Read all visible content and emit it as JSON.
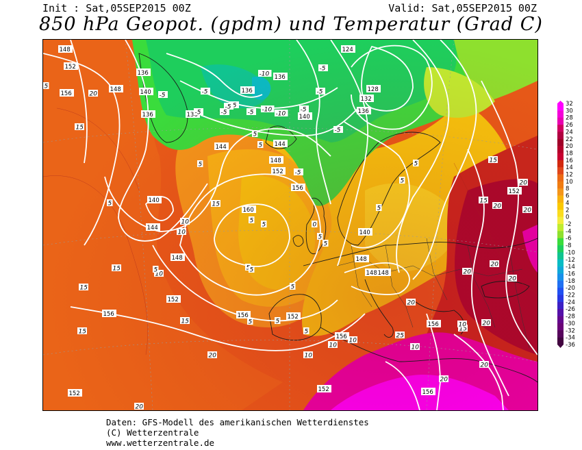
{
  "header": {
    "init": "Init : Sat,05SEP2015 00Z",
    "valid": "Valid: Sat,05SEP2015 00Z",
    "title": "850 hPa Geopot. (gpdm) und Temperatur (Grad C)"
  },
  "footer": {
    "line1": "Daten: GFS-Modell des amerikanischen Wetterdienstes",
    "line2": "(C) Wetterzentrale",
    "line3": "www.wetterzentrale.de"
  },
  "legend": {
    "ticks": [
      "32",
      "30",
      "28",
      "26",
      "24",
      "22",
      "20",
      "18",
      "16",
      "14",
      "12",
      "10",
      "8",
      "6",
      "4",
      "2",
      "0",
      "-2",
      "-4",
      "-6",
      "-8",
      "-10",
      "-12",
      "-14",
      "-16",
      "-18",
      "-20",
      "-22",
      "-24",
      "-26",
      "-28",
      "-30",
      "-32",
      "-34",
      "-36"
    ],
    "colors": [
      "#ff00ff",
      "#f400d8",
      "#e800b0",
      "#d00060",
      "#b00040",
      "#a00028",
      "#b4002a",
      "#c80030",
      "#d2280e",
      "#e0461a",
      "#ec6a16",
      "#f07c12",
      "#f4961a",
      "#f8b20e",
      "#fac800",
      "#fadc1e",
      "#f4ec3c",
      "#c0ec30",
      "#8ee02e",
      "#3adc3c",
      "#1ece5c",
      "#10c490",
      "#08bcc4",
      "#10a8d8",
      "#1890ea",
      "#2070f2",
      "#2050f2",
      "#2838e2",
      "#3c20c4",
      "#5410a8",
      "#64088c",
      "#6a0478",
      "#56045c",
      "#420440"
    ]
  },
  "map": {
    "geopotential_labels": [
      "148",
      "152",
      "156",
      "148",
      "140",
      "136",
      "136",
      "136",
      "136",
      "136",
      "124",
      "128",
      "132",
      "136",
      "140",
      "144",
      "144",
      "148",
      "152",
      "156",
      "160",
      "140",
      "144",
      "148",
      "152",
      "156",
      "140",
      "148",
      "148",
      "148",
      "152",
      "152",
      "156",
      "156",
      "156",
      "152",
      "152",
      "156"
    ],
    "temperature_labels": [
      "5",
      "20",
      "15",
      "5",
      "15",
      "15",
      "10",
      "10",
      "15",
      "15",
      "15",
      "20",
      "20",
      "10",
      "5",
      "-5",
      "-5",
      "-5",
      "-5",
      "-5",
      "-5",
      "-5",
      "-10",
      "-10",
      "-10",
      "-5",
      "-5",
      "-5",
      "-5",
      "-5",
      "5",
      "5",
      "5",
      "5",
      "5",
      "5",
      "5",
      "5",
      "5",
      "5",
      "5",
      "10",
      "10",
      "10",
      "15",
      "15",
      "20",
      "20",
      "20",
      "20",
      "20",
      "20",
      "20",
      "25",
      "20",
      "15",
      "10",
      "20",
      "20",
      "10",
      "5",
      "5",
      "5",
      "0",
      "5",
      "5"
    ]
  }
}
